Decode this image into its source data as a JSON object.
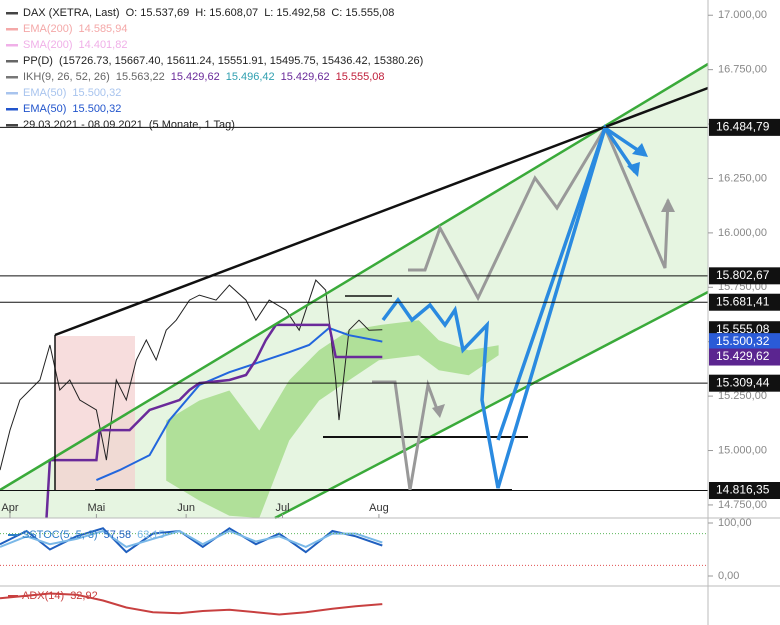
{
  "legend": [
    {
      "swatch": "#444",
      "items": [
        "DAX (XETRA, Last)",
        "O: 15.537,69",
        "H: 15.608,07",
        "L: 15.492,58",
        "C: 15.555,08"
      ],
      "colors": [
        "#222",
        "#222",
        "#222",
        "#222",
        "#222"
      ]
    },
    {
      "swatch": "#f4a8a8",
      "items": [
        "EMA(200)",
        "14.585,94"
      ],
      "colors": [
        "#f4a8a8",
        "#f4a8a8"
      ]
    },
    {
      "swatch": "#f0b0e8",
      "items": [
        "SMA(200)",
        "14.401,82"
      ],
      "colors": [
        "#f0b0e8",
        "#f0b0e8"
      ]
    },
    {
      "swatch": "#666",
      "items": [
        "PP(D)",
        "(15726.73, 15667.40, 15611.24, 15551.91, 15495.75, 15436.42, 15380.26)"
      ],
      "colors": [
        "#222",
        "#222"
      ]
    },
    {
      "swatch": "#777",
      "items": [
        "IKH(9, 26, 52, 26)",
        "15.563,22",
        "15.429,62",
        "15.496,42",
        "15.429,62",
        "15.555,08"
      ],
      "colors": [
        "#666",
        "#666",
        "#6a2a9a",
        "#2f9fb0",
        "#6a2a9a",
        "#c0203c"
      ]
    },
    {
      "swatch": "#a8c4ee",
      "items": [
        "EMA(50)",
        "15.500,32"
      ],
      "colors": [
        "#a8c4ee",
        "#a8c4ee"
      ]
    },
    {
      "swatch": "#2255cc",
      "items": [
        "EMA(50)",
        "15.500,32"
      ],
      "colors": [
        "#2255cc",
        "#2255cc"
      ]
    },
    {
      "swatch": "#444",
      "items": [
        "29.03.2021 - 08.09.2021",
        "(5 Monate, 1 Tag)"
      ],
      "colors": [
        "#222",
        "#222"
      ]
    }
  ],
  "chart_data": {
    "type": "line",
    "xlim": [
      0,
      213
    ],
    "ylim": [
      14690,
      17070
    ],
    "yticks": [
      {
        "value": 14750,
        "label": "14.750,00"
      },
      {
        "value": 15000,
        "label": "15.000,00"
      },
      {
        "value": 15250,
        "label": "15.250,00"
      },
      {
        "value": 15500,
        "label": "15.500,00"
      },
      {
        "value": 15750,
        "label": "15.750,00"
      },
      {
        "value": 16000,
        "label": "16.000,00"
      },
      {
        "value": 16250,
        "label": "16.250,00"
      },
      {
        "value": 16500,
        "label": "16.500,00"
      },
      {
        "value": 16750,
        "label": "16.750,00"
      },
      {
        "value": 17000,
        "label": "17.000,00"
      }
    ],
    "xticks": [
      {
        "value": 3,
        "label": "Apr"
      },
      {
        "value": 29,
        "label": "Mai"
      },
      {
        "value": 56,
        "label": "Jun"
      },
      {
        "value": 85,
        "label": "Jul"
      },
      {
        "value": 114,
        "label": "Aug"
      }
    ],
    "cloud": {
      "color": "#a6dc8c",
      "x": [
        50,
        60,
        69,
        78,
        87,
        96,
        105,
        114,
        126,
        132,
        141,
        150
      ],
      "upper": [
        15138,
        15230,
        15276,
        15092,
        15323,
        15461,
        15553,
        15576,
        15599,
        15507,
        15461,
        15484
      ],
      "lower": [
        14862,
        14770,
        14700,
        14690,
        15046,
        15230,
        15323,
        15415,
        15438,
        15369,
        15346,
        15438
      ]
    },
    "series": [
      {
        "color": "#222222",
        "width": 1,
        "x": [
          0,
          3,
          6,
          12,
          15,
          18,
          21,
          24,
          29,
          32,
          35,
          38,
          41,
          44,
          47,
          50,
          53,
          57,
          60,
          65,
          69,
          74,
          77,
          81,
          86,
          90,
          95,
          98,
          101,
          102,
          105,
          108,
          111,
          115
        ],
        "values": [
          14910,
          15094,
          15232,
          15324,
          15485,
          15278,
          15324,
          15232,
          15186,
          14956,
          15324,
          15232,
          15416,
          15508,
          15416,
          15553,
          15599,
          15691,
          15714,
          15691,
          15760,
          15691,
          15599,
          15691,
          15645,
          15553,
          15783,
          15737,
          15324,
          15140,
          15553,
          15599,
          15553,
          15555.08
        ]
      },
      {
        "color": "#2266dd",
        "width": 2,
        "x": [
          29,
          36,
          45,
          51,
          60,
          69,
          78,
          87,
          93,
          99,
          105,
          115
        ],
        "values": [
          14864,
          14910,
          14979,
          15140,
          15301,
          15360,
          15406,
          15452,
          15485,
          15563,
          15530,
          15500.32
        ]
      },
      {
        "color": "#6a2a9a",
        "width": 2.5,
        "x": [
          14,
          15,
          29,
          30,
          39,
          45,
          54,
          57,
          60,
          69,
          74,
          77,
          80,
          83,
          99,
          101,
          115
        ],
        "values": [
          14690,
          14956,
          14956,
          15094,
          15094,
          15186,
          15232,
          15278,
          15310,
          15324,
          15347,
          15416,
          15508,
          15577,
          15577,
          15429.62,
          15429.62
        ]
      }
    ],
    "price_levels": [
      {
        "value": 16484.79,
        "label": "16.484,79",
        "color": "#111111",
        "line": true
      },
      {
        "value": 15802.67,
        "label": "15.802,67",
        "color": "#111111",
        "line": true
      },
      {
        "value": 15681.41,
        "label": "15.681,41",
        "color": "#111111",
        "line": true
      },
      {
        "value": 15555.08,
        "label": "15.555,08",
        "color": "#111111",
        "line": false
      },
      {
        "value": 15500.32,
        "label": "15.500,32",
        "color": "#2a5bd7",
        "line": false
      },
      {
        "value": 15429.62,
        "label": "15.429,62",
        "color": "#5b2590",
        "line": false
      },
      {
        "value": 15309.44,
        "label": "15.309,44",
        "color": "#111111",
        "line": true
      },
      {
        "value": 14816.35,
        "label": "14.816,35",
        "color": "#111111",
        "line": true
      }
    ]
  },
  "stoch": {
    "label": "SSTOC(5, 5, 3)",
    "value_texts": [
      "57,58",
      "63,15"
    ],
    "label_color": "#2f7fc8",
    "ylim": [
      0,
      100
    ],
    "yticks": [
      {
        "value": 100,
        "label": "100,00"
      },
      {
        "value": 0,
        "label": "0,00"
      }
    ],
    "levels": [
      80,
      20
    ],
    "level_colors": [
      "#5cb85c",
      "#e05050"
    ],
    "series": [
      {
        "color": "#1f5fbf",
        "x": [
          0,
          8,
          15,
          23,
          31,
          38,
          46,
          54,
          61,
          69,
          77,
          84,
          92,
          100,
          107,
          115
        ],
        "values": [
          60,
          85,
          50,
          75,
          90,
          45,
          80,
          85,
          55,
          90,
          60,
          80,
          45,
          85,
          75,
          57.58
        ]
      },
      {
        "color": "#7ab8e8",
        "x": [
          0,
          8,
          15,
          23,
          31,
          38,
          46,
          54,
          61,
          69,
          77,
          84,
          92,
          100,
          107,
          115
        ],
        "values": [
          55,
          75,
          60,
          70,
          85,
          55,
          70,
          85,
          60,
          85,
          65,
          75,
          55,
          80,
          80,
          63.15
        ]
      }
    ]
  },
  "adx": {
    "label": "ADX(14)",
    "value_text": "32,92",
    "label_color": "#c84040",
    "ylim": [
      15,
      45
    ],
    "series": [
      {
        "color": "#c84040",
        "x": [
          0,
          8,
          15,
          23,
          31,
          38,
          46,
          54,
          61,
          69,
          77,
          84,
          92,
          100,
          107,
          115
        ],
        "values": [
          38,
          40,
          42,
          41,
          36,
          30,
          26,
          25,
          27,
          28,
          26,
          24,
          26,
          29,
          31,
          32.92
        ]
      }
    ]
  }
}
